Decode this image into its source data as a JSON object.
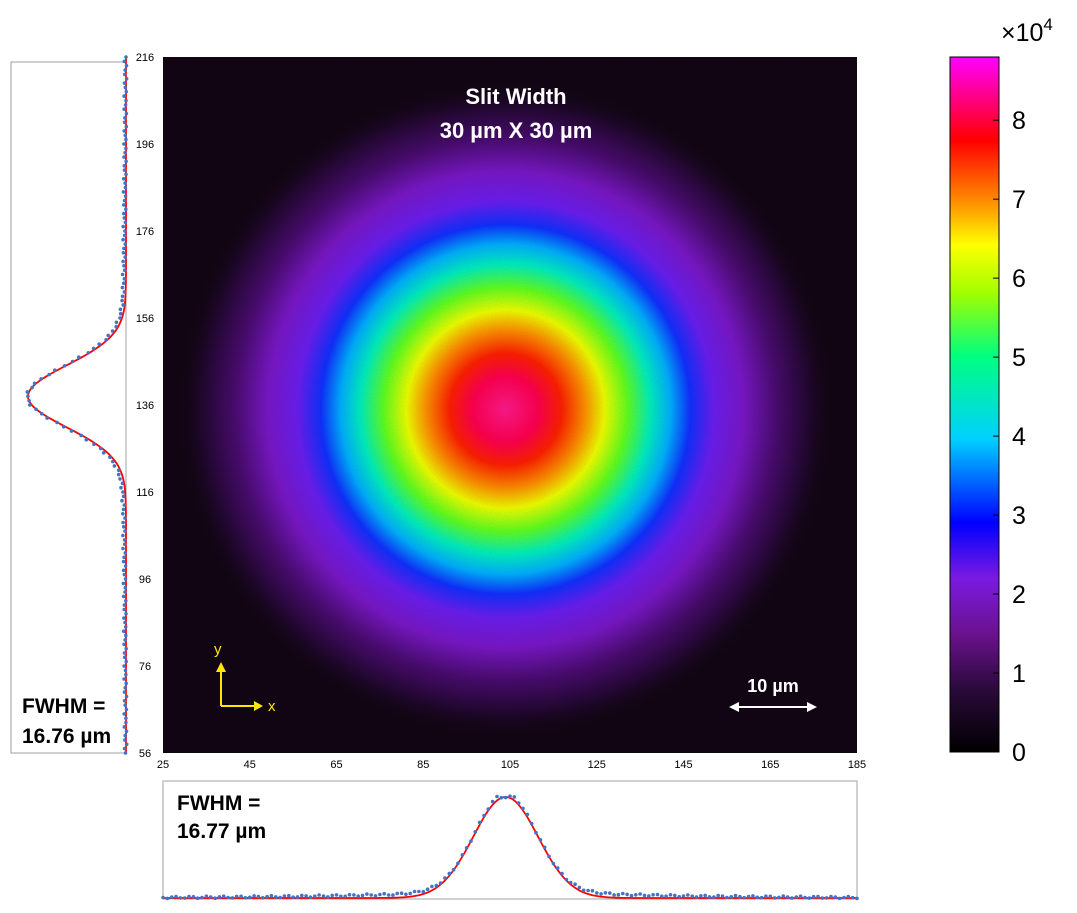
{
  "chart_data": [
    {
      "type": "heatmap",
      "title": "Slit Width",
      "subtitle": "30 µm X 30 µm",
      "x_ticks": [
        25,
        45,
        65,
        85,
        105,
        125,
        145,
        165,
        185
      ],
      "y_ticks": [
        56,
        76,
        96,
        116,
        136,
        156,
        176,
        196,
        216
      ],
      "xlim": [
        25,
        185
      ],
      "ylim": [
        56,
        216
      ],
      "peak": {
        "x": 104,
        "y": 135,
        "value": 87000
      },
      "colormap": [
        "#000000",
        "#2a0a3a",
        "#6a128e",
        "#7a1ae0",
        "#0000ff",
        "#00d0ff",
        "#00ff80",
        "#a0ff00",
        "#ffff00",
        "#ff8000",
        "#ff0000",
        "#ff00ff"
      ],
      "scale_bar": {
        "label": "10 µm"
      },
      "axis_indicator": {
        "x_label": "x",
        "y_label": "y",
        "color": "#ffe600"
      },
      "colorbar": {
        "exponent_label": "×10",
        "exponent_power": "4",
        "ticks": [
          0,
          1,
          2,
          3,
          4,
          5,
          6,
          7,
          8
        ],
        "range": [
          0,
          8.8
        ]
      }
    },
    {
      "type": "scatter",
      "name": "y-profile",
      "annotation_line1": "FWHM =",
      "annotation_line2": "16.76 µm",
      "fwhm": 16.76,
      "center": 138,
      "point_color": "#4472c4",
      "fit_color": "#ff0000"
    },
    {
      "type": "scatter",
      "name": "x-profile",
      "annotation_line1": "FWHM =",
      "annotation_line2": "16.77 µm",
      "fwhm": 16.77,
      "center": 104,
      "point_color": "#4472c4",
      "fit_color": "#ff0000"
    }
  ]
}
